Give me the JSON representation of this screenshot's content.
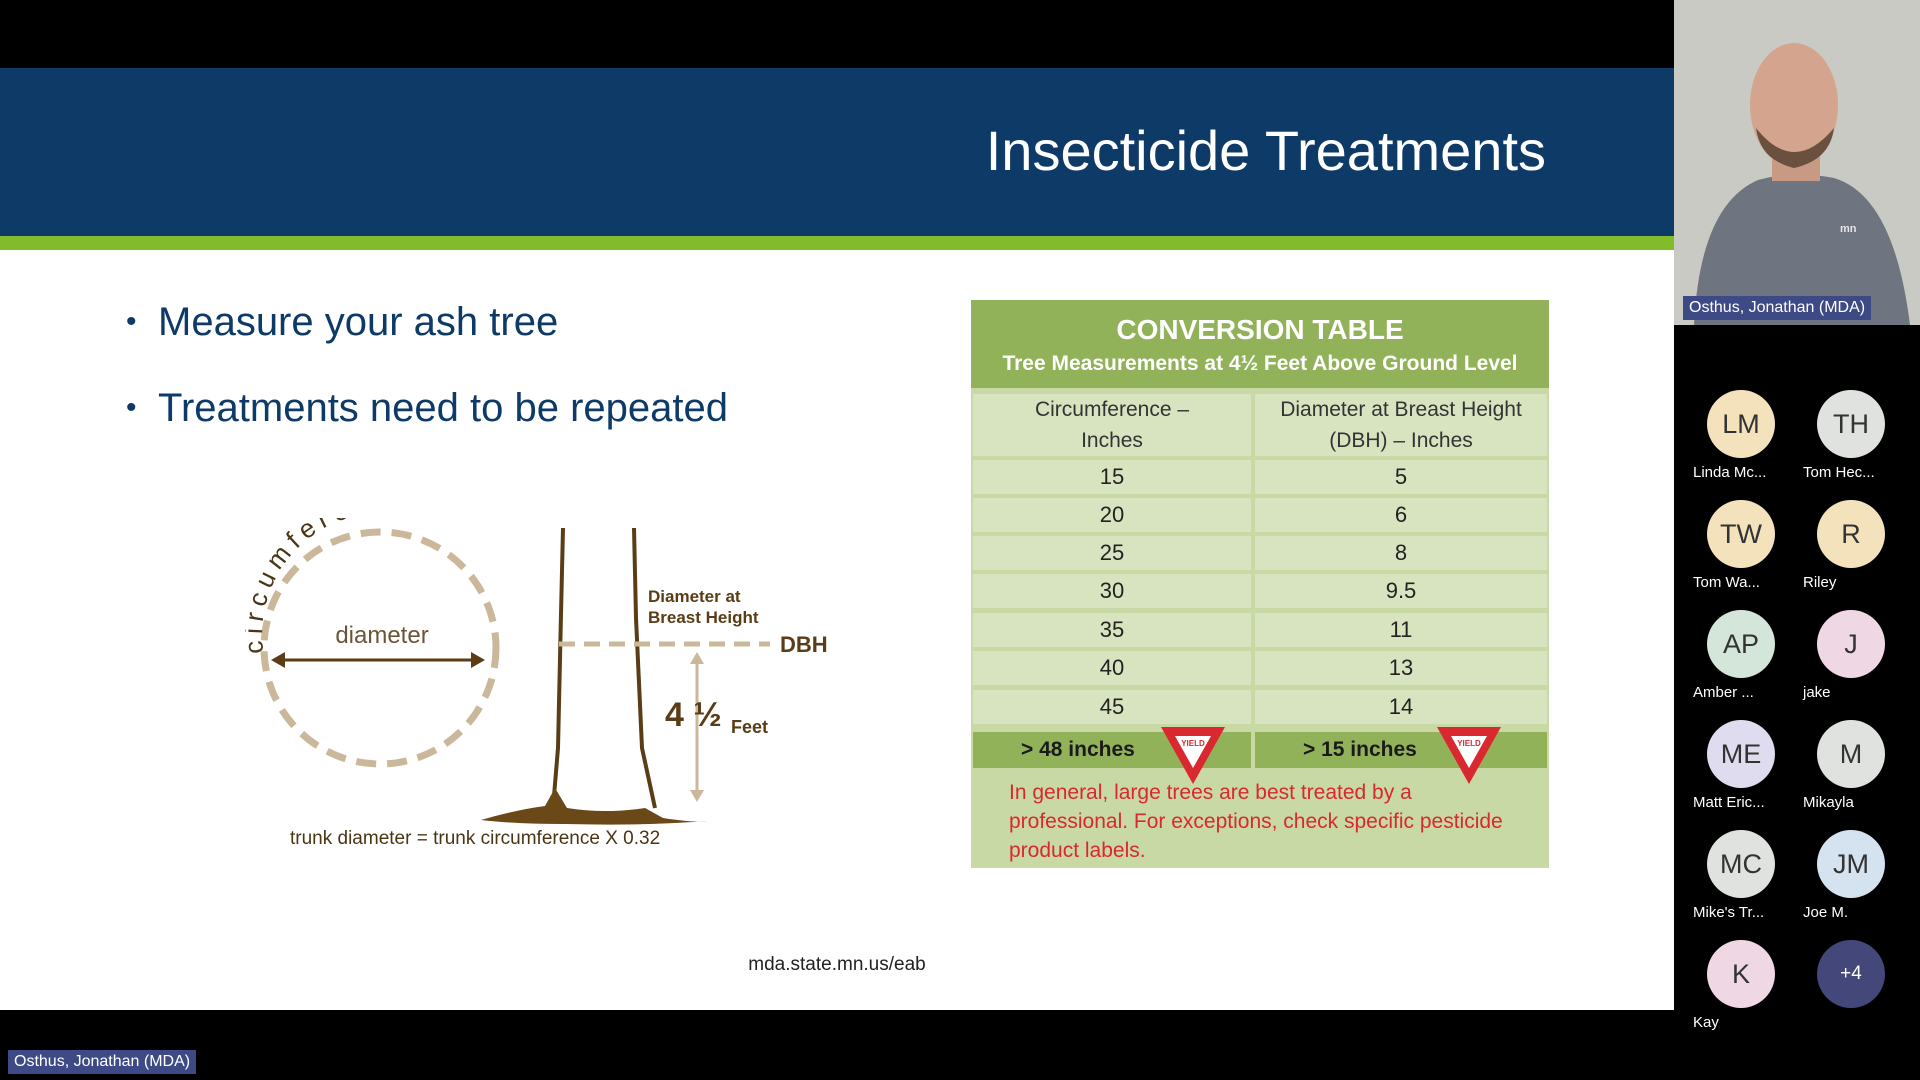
{
  "slide": {
    "title": "Insecticide Treatments",
    "bullets": [
      "Measure your ash tree",
      "Treatments need to be repeated"
    ],
    "footer_url": "mda.state.mn.us/eab",
    "diagram": {
      "circumference_label": "circumference",
      "diameter_label": "diameter",
      "dbh_caption_line1": "Diameter at",
      "dbh_caption_line2": "Breast Height",
      "dbh_label": "DBH",
      "height_value": "4 ½",
      "height_unit": "Feet",
      "formula": "trunk diameter = trunk circumference X 0.32"
    },
    "conversion_table": {
      "title": "CONVERSION TABLE",
      "subtitle": "Tree Measurements at 4½ Feet Above Ground Level",
      "col1_line1": "Circumference –",
      "col1_line2": "Inches",
      "col2_line1": "Diameter at Breast Height",
      "col2_line2": "(DBH) – Inches",
      "rows": [
        [
          "15",
          "5"
        ],
        [
          "20",
          "6"
        ],
        [
          "25",
          "8"
        ],
        [
          "30",
          "9.5"
        ],
        [
          "35",
          "11"
        ],
        [
          "40",
          "13"
        ],
        [
          "45",
          "14"
        ]
      ],
      "large_row": [
        "> 48 inches",
        "> 15 inches"
      ],
      "yield_sign_text": "YIELD",
      "note": "In general, large trees are best treated by a professional. For exceptions, check specific pesticide product labels."
    }
  },
  "meeting": {
    "speaker_name": "Osthus, Jonathan (MDA)",
    "shirt_logo": "mn",
    "bottom_label": "Osthus, Jonathan (MDA)",
    "participants": [
      {
        "initials": "LM",
        "name": "Linda Mc...",
        "color": "#f3e2bc"
      },
      {
        "initials": "TH",
        "name": "Tom Hec...",
        "color": "#dfe2de"
      },
      {
        "initials": "TW",
        "name": "Tom Wa...",
        "color": "#f3e2bc"
      },
      {
        "initials": "R",
        "name": "Riley",
        "color": "#f3e2bc"
      },
      {
        "initials": "AP",
        "name": "Amber ...",
        "color": "#d4e6da"
      },
      {
        "initials": "J",
        "name": "jake",
        "color": "#efd8e4"
      },
      {
        "initials": "ME",
        "name": "Matt Eric...",
        "color": "#dfdcef"
      },
      {
        "initials": "M",
        "name": "Mikayla",
        "color": "#dfe2de"
      },
      {
        "initials": "MC",
        "name": "Mike's Tr...",
        "color": "#dfe2de"
      },
      {
        "initials": "JM",
        "name": "Joe M.",
        "color": "#d5e2ef"
      },
      {
        "initials": "K",
        "name": "Kay",
        "color": "#efd8e4"
      }
    ],
    "overflow_count": "+4"
  }
}
